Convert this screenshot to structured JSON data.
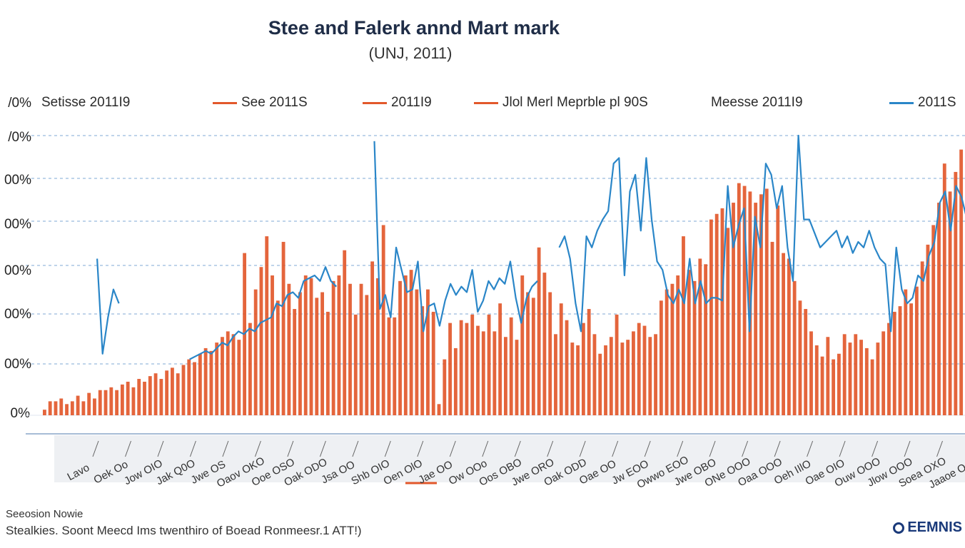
{
  "chart_data": {
    "type": "bar",
    "title": "Stee and Falerk annd Mart mark",
    "subtitle": "(UNJ, 2011)",
    "xlabel": "",
    "ylabel": "",
    "ylim": [
      0,
      100
    ],
    "y_tick_labels": [
      "0%",
      "00%",
      "00%",
      "00%",
      "00%",
      "00%",
      "/0%"
    ],
    "grid": true,
    "legend_position": "top",
    "legend": [
      {
        "label": "Setisse 2011I9",
        "color": ""
      },
      {
        "label": "See 2011S",
        "color": "#e2582b"
      },
      {
        "label": "2011I9",
        "color": "#e2582b"
      },
      {
        "label": "Jlol Merl Meprble pl 90S",
        "color": "#e2582b"
      },
      {
        "label": "Meesse 2011I9",
        "color": ""
      },
      {
        "label": "2011S",
        "color": "#2a86c8"
      }
    ],
    "x_tick_labels": [
      "Lavo",
      "Oek Oo",
      "Jow OIO",
      "Jak Q0O",
      "Jwe OS",
      "Oaov OKO",
      "Ooe OSO",
      "Oak ODO",
      "Jsa OO",
      "Shb OIO",
      "Oen OlO",
      "Jae OO",
      "Ow OOo",
      "Oos OBO",
      "Jwe ORO",
      "Oak ODD",
      "Oae OO",
      "Jw EOO",
      "Owwo EOO",
      "Jwe OBO",
      "ONe OOO",
      "Oaa OOO",
      "Oeh IIlO",
      "Oae OIO",
      "Ouw OOO",
      "Jlow OOO",
      "Soea OXO",
      "Jaaoe OOO"
    ],
    "series": [
      {
        "name": "2011S (orange)",
        "color": "#e2582b",
        "values": [
          2,
          5,
          5,
          6,
          4,
          5,
          7,
          5,
          8,
          6,
          9,
          9,
          10,
          9,
          11,
          12,
          10,
          13,
          12,
          14,
          15,
          13,
          16,
          17,
          15,
          18,
          20,
          19,
          22,
          24,
          23,
          26,
          28,
          30,
          29,
          27,
          58,
          33,
          45,
          53,
          64,
          50,
          41,
          62,
          47,
          38,
          44,
          50,
          49,
          42,
          44,
          37,
          48,
          50,
          59,
          47,
          36,
          47,
          43,
          55,
          49,
          68,
          35,
          35,
          48,
          50,
          52,
          45,
          39,
          45,
          37,
          4,
          20,
          33,
          24,
          34,
          33,
          36,
          32,
          30,
          36,
          30,
          40,
          28,
          35,
          27,
          50,
          44,
          42,
          60,
          51,
          44,
          29,
          40,
          34,
          26,
          25,
          33,
          38,
          29,
          22,
          25,
          28,
          36,
          26,
          27,
          30,
          33,
          32,
          28,
          29,
          41,
          45,
          47,
          50,
          64,
          52,
          48,
          56,
          54,
          70,
          72,
          74,
          67,
          76,
          83,
          82,
          80,
          76,
          79,
          81,
          62,
          75,
          58,
          56,
          48,
          41,
          38,
          30,
          25,
          21,
          28,
          20,
          22,
          29,
          26,
          29,
          27,
          24,
          20,
          26,
          30,
          33,
          37,
          39,
          45,
          40,
          46,
          55,
          61,
          68,
          76,
          90,
          80,
          87,
          95
        ]
      },
      {
        "name": "2011S (blue)",
        "color": "#2a86c8",
        "values": [
          null,
          null,
          null,
          null,
          null,
          56,
          22,
          35,
          45,
          40,
          null,
          null,
          null,
          null,
          null,
          null,
          null,
          null,
          null,
          null,
          null,
          null,
          20,
          21,
          22,
          23,
          22,
          24,
          26,
          25,
          28,
          30,
          29,
          31,
          30,
          33,
          34,
          35,
          40,
          39,
          43,
          44,
          42,
          48,
          49,
          50,
          48,
          53,
          48,
          46,
          null,
          null,
          null,
          null,
          null,
          null,
          98,
          38,
          43,
          35,
          60,
          52,
          44,
          45,
          55,
          30,
          39,
          40,
          32,
          41,
          47,
          43,
          46,
          44,
          52,
          37,
          41,
          48,
          45,
          49,
          47,
          55,
          42,
          33,
          42,
          46,
          48,
          null,
          null,
          null,
          60,
          64,
          56,
          40,
          30,
          64,
          60,
          66,
          70,
          73,
          90,
          92,
          50,
          80,
          86,
          66,
          92,
          70,
          55,
          52,
          43,
          40,
          45,
          40,
          56,
          40,
          48,
          40,
          42,
          42,
          41,
          82,
          60,
          68,
          74,
          30,
          71,
          60,
          90,
          86,
          74,
          82,
          60,
          48,
          100,
          70,
          70,
          65,
          60,
          62,
          64,
          66,
          60,
          64,
          58,
          62,
          60,
          66,
          60,
          56,
          54,
          30,
          60,
          45,
          40,
          42,
          50,
          48,
          57,
          62,
          76,
          80,
          66,
          82,
          78,
          70,
          74
        ]
      }
    ]
  }
}
